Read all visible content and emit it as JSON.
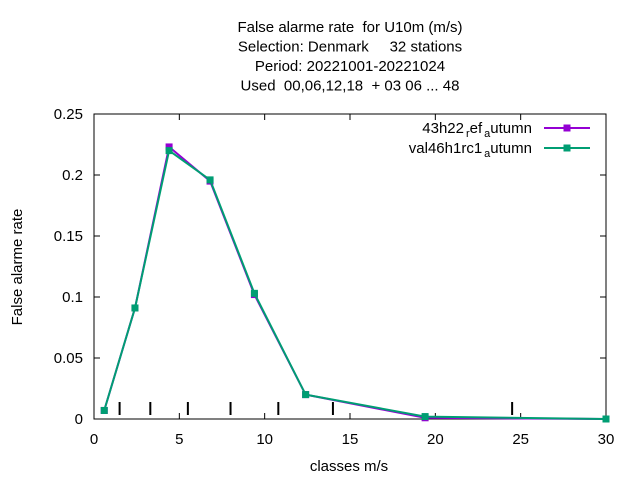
{
  "chart_data": {
    "type": "line",
    "title_lines": [
      "False alarme rate  for U10m (m/s)",
      "Selection: Denmark     32 stations",
      "Period: 20221001-20221024",
      "Used  00,06,12,18  + 03 06 ... 48"
    ],
    "xlabel": "classes m/s",
    "ylabel": "False alarme rate",
    "xlim": [
      0,
      30
    ],
    "ylim": [
      0,
      0.25
    ],
    "x_ticks": [
      0,
      5,
      10,
      15,
      20,
      25,
      30
    ],
    "y_ticks": [
      0,
      0.05,
      0.1,
      0.15,
      0.2,
      0.25
    ],
    "x_tick_labels": [
      "0",
      "5",
      "10",
      "15",
      "20",
      "25",
      "30"
    ],
    "y_tick_labels": [
      "0",
      "0.05",
      "0.1",
      "0.15",
      "0.2",
      "0.25"
    ],
    "class_boundaries": [
      1.5,
      3.3,
      5.5,
      8.0,
      10.8,
      14.0,
      24.5
    ],
    "grid": false,
    "legend_position": "top-right",
    "series": [
      {
        "name": "43h22_ref_autumn",
        "legend_main": "43h22",
        "legend_sub1": "r",
        "legend_mid": "ef",
        "legend_sub2": "a",
        "legend_tail": "utumn",
        "color": "#9400d3",
        "x": [
          0.6,
          2.4,
          4.4,
          6.8,
          9.4,
          12.4,
          19.4,
          30.0
        ],
        "y": [
          0.007,
          0.091,
          0.223,
          0.195,
          0.102,
          0.02,
          0.001,
          0.0
        ]
      },
      {
        "name": "val46h1rc1_autumn",
        "legend_main": "val46h1rc1",
        "legend_sub1": "a",
        "legend_mid": "",
        "legend_sub2": "",
        "legend_tail": "utumn",
        "color": "#009e73",
        "x": [
          0.6,
          2.4,
          4.4,
          6.8,
          9.4,
          12.4,
          19.4,
          30.0
        ],
        "y": [
          0.007,
          0.091,
          0.22,
          0.196,
          0.103,
          0.02,
          0.002,
          0.0
        ]
      }
    ]
  }
}
